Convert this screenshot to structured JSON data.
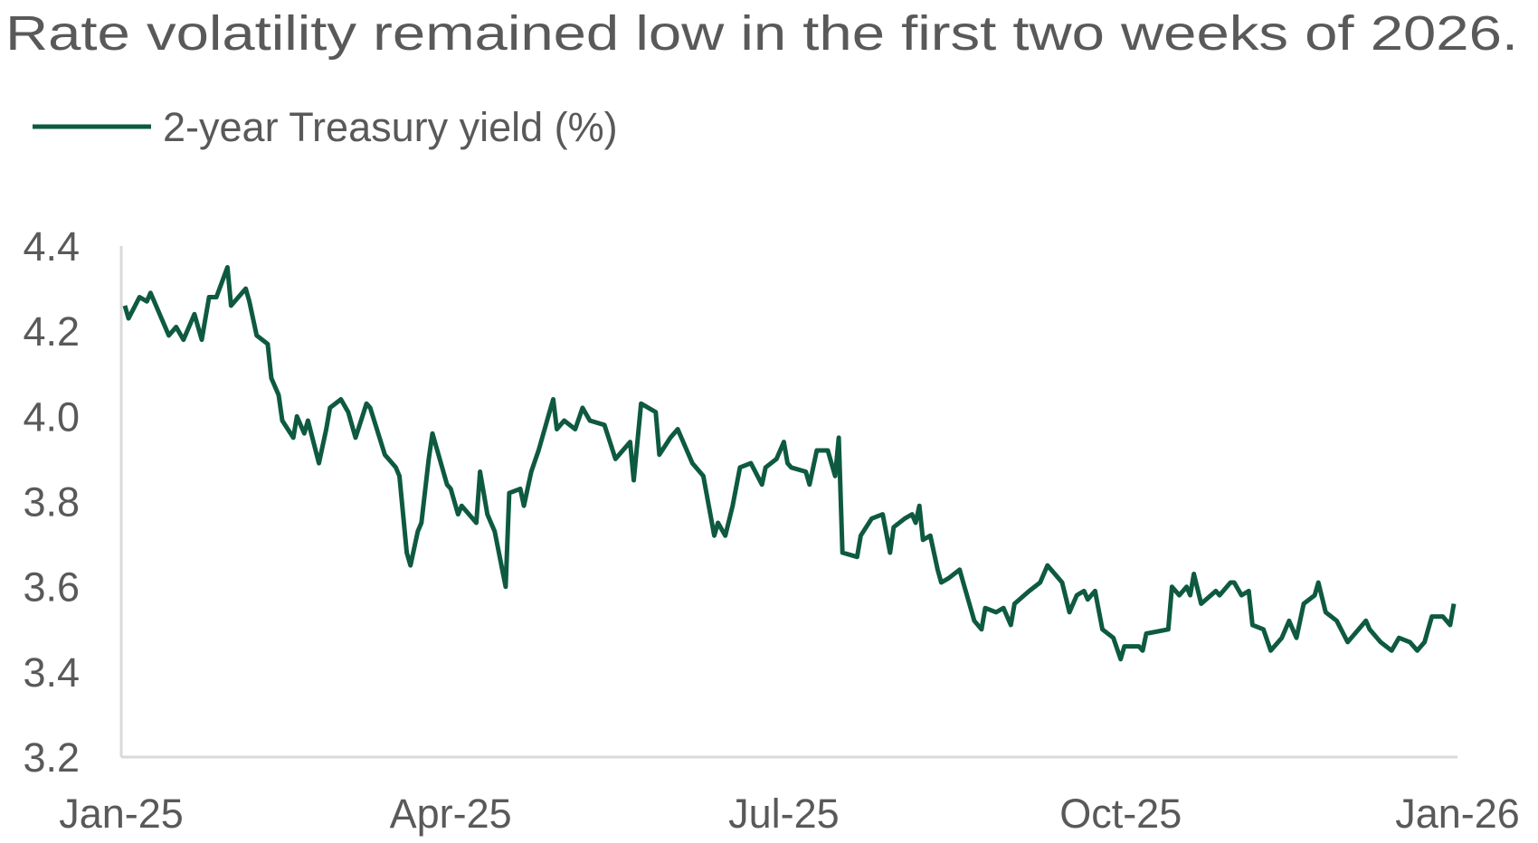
{
  "chart_data": {
    "type": "line",
    "title": "Rate volatility remained low in the first two weeks of 2026.",
    "xlabel": "",
    "ylabel": "",
    "ylim": [
      3.2,
      4.4
    ],
    "xlim": [
      "2025-01-01",
      "2026-01-01"
    ],
    "grid": false,
    "legend_position": "top-left",
    "y_ticks": [
      "4.4",
      "4.2",
      "4.0",
      "3.8",
      "3.6",
      "3.4",
      "3.2"
    ],
    "x_ticks": [
      {
        "date": "2025-01-01",
        "label": "Jan-25"
      },
      {
        "date": "2025-04-01",
        "label": "Apr-25"
      },
      {
        "date": "2025-07-01",
        "label": "Jul-25"
      },
      {
        "date": "2025-10-01",
        "label": "Oct-25"
      },
      {
        "date": "2026-01-01",
        "label": "Jan-26"
      }
    ],
    "series": [
      {
        "name": "2-year Treasury yield (%)",
        "color": "#0e5a41",
        "points": [
          [
            "2025-01-02",
            4.26
          ],
          [
            "2025-01-03",
            4.23
          ],
          [
            "2025-01-06",
            4.28
          ],
          [
            "2025-01-08",
            4.27
          ],
          [
            "2025-01-09",
            4.29
          ],
          [
            "2025-01-14",
            4.19
          ],
          [
            "2025-01-16",
            4.21
          ],
          [
            "2025-01-18",
            4.18
          ],
          [
            "2025-01-21",
            4.24
          ],
          [
            "2025-01-23",
            4.18
          ],
          [
            "2025-01-25",
            4.28
          ],
          [
            "2025-01-27",
            4.28
          ],
          [
            "2025-01-30",
            4.35
          ],
          [
            "2025-01-31",
            4.26
          ],
          [
            "2025-02-04",
            4.3
          ],
          [
            "2025-02-05",
            4.27
          ],
          [
            "2025-02-07",
            4.19
          ],
          [
            "2025-02-10",
            4.17
          ],
          [
            "2025-02-11",
            4.09
          ],
          [
            "2025-02-13",
            4.05
          ],
          [
            "2025-02-14",
            3.99
          ],
          [
            "2025-02-17",
            3.95
          ],
          [
            "2025-02-18",
            4.0
          ],
          [
            "2025-02-20",
            3.96
          ],
          [
            "2025-02-21",
            3.99
          ],
          [
            "2025-02-24",
            3.89
          ],
          [
            "2025-02-26",
            3.97
          ],
          [
            "2025-02-27",
            4.02
          ],
          [
            "2025-03-02",
            4.04
          ],
          [
            "2025-03-04",
            4.01
          ],
          [
            "2025-03-06",
            3.95
          ],
          [
            "2025-03-09",
            4.03
          ],
          [
            "2025-03-10",
            4.02
          ],
          [
            "2025-03-14",
            3.91
          ],
          [
            "2025-03-17",
            3.88
          ],
          [
            "2025-03-18",
            3.86
          ],
          [
            "2025-03-20",
            3.68
          ],
          [
            "2025-03-21",
            3.65
          ],
          [
            "2025-03-23",
            3.73
          ],
          [
            "2025-03-24",
            3.75
          ],
          [
            "2025-03-26",
            3.9
          ],
          [
            "2025-03-27",
            3.96
          ],
          [
            "2025-03-31",
            3.84
          ],
          [
            "2025-04-01",
            3.83
          ],
          [
            "2025-04-03",
            3.77
          ],
          [
            "2025-04-04",
            3.79
          ],
          [
            "2025-04-08",
            3.75
          ],
          [
            "2025-04-09",
            3.87
          ],
          [
            "2025-04-11",
            3.77
          ],
          [
            "2025-04-13",
            3.73
          ],
          [
            "2025-04-16",
            3.6
          ],
          [
            "2025-04-17",
            3.82
          ],
          [
            "2025-04-20",
            3.83
          ],
          [
            "2025-04-21",
            3.79
          ],
          [
            "2025-04-23",
            3.87
          ],
          [
            "2025-04-25",
            3.92
          ],
          [
            "2025-04-28",
            4.01
          ],
          [
            "2025-04-29",
            4.04
          ],
          [
            "2025-04-30",
            3.97
          ],
          [
            "2025-05-02",
            3.99
          ],
          [
            "2025-05-05",
            3.97
          ],
          [
            "2025-05-07",
            4.02
          ],
          [
            "2025-05-09",
            3.99
          ],
          [
            "2025-05-13",
            3.98
          ],
          [
            "2025-05-16",
            3.9
          ],
          [
            "2025-05-20",
            3.94
          ],
          [
            "2025-05-21",
            3.85
          ],
          [
            "2025-05-23",
            4.03
          ],
          [
            "2025-05-27",
            4.01
          ],
          [
            "2025-05-28",
            3.91
          ],
          [
            "2025-05-31",
            3.95
          ],
          [
            "2025-06-02",
            3.97
          ],
          [
            "2025-06-06",
            3.89
          ],
          [
            "2025-06-09",
            3.86
          ],
          [
            "2025-06-12",
            3.72
          ],
          [
            "2025-06-13",
            3.75
          ],
          [
            "2025-06-15",
            3.72
          ],
          [
            "2025-06-17",
            3.79
          ],
          [
            "2025-06-19",
            3.88
          ],
          [
            "2025-06-22",
            3.89
          ],
          [
            "2025-06-25",
            3.84
          ],
          [
            "2025-06-26",
            3.88
          ],
          [
            "2025-06-29",
            3.9
          ],
          [
            "2025-07-01",
            3.94
          ],
          [
            "2025-07-02",
            3.89
          ],
          [
            "2025-07-03",
            3.88
          ],
          [
            "2025-07-07",
            3.87
          ],
          [
            "2025-07-08",
            3.84
          ],
          [
            "2025-07-10",
            3.92
          ],
          [
            "2025-07-13",
            3.92
          ],
          [
            "2025-07-15",
            3.86
          ],
          [
            "2025-07-16",
            3.95
          ],
          [
            "2025-07-17",
            3.68
          ],
          [
            "2025-07-21",
            3.67
          ],
          [
            "2025-07-22",
            3.72
          ],
          [
            "2025-07-25",
            3.76
          ],
          [
            "2025-07-28",
            3.77
          ],
          [
            "2025-07-30",
            3.68
          ],
          [
            "2025-07-31",
            3.74
          ],
          [
            "2025-08-03",
            3.76
          ],
          [
            "2025-08-05",
            3.77
          ],
          [
            "2025-08-06",
            3.75
          ],
          [
            "2025-08-07",
            3.79
          ],
          [
            "2025-08-08",
            3.71
          ],
          [
            "2025-08-10",
            3.72
          ],
          [
            "2025-08-12",
            3.64
          ],
          [
            "2025-08-13",
            3.61
          ],
          [
            "2025-08-15",
            3.62
          ],
          [
            "2025-08-18",
            3.64
          ],
          [
            "2025-08-19",
            3.61
          ],
          [
            "2025-08-22",
            3.52
          ],
          [
            "2025-08-24",
            3.5
          ],
          [
            "2025-08-25",
            3.55
          ],
          [
            "2025-08-28",
            3.54
          ],
          [
            "2025-08-30",
            3.55
          ],
          [
            "2025-09-01",
            3.51
          ],
          [
            "2025-09-02",
            3.56
          ],
          [
            "2025-09-06",
            3.59
          ],
          [
            "2025-09-09",
            3.61
          ],
          [
            "2025-09-11",
            3.65
          ],
          [
            "2025-09-13",
            3.63
          ],
          [
            "2025-09-15",
            3.61
          ],
          [
            "2025-09-17",
            3.54
          ],
          [
            "2025-09-19",
            3.58
          ],
          [
            "2025-09-21",
            3.59
          ],
          [
            "2025-09-22",
            3.57
          ],
          [
            "2025-09-24",
            3.59
          ],
          [
            "2025-09-26",
            3.5
          ],
          [
            "2025-09-29",
            3.48
          ],
          [
            "2025-10-01",
            3.43
          ],
          [
            "2025-10-02",
            3.46
          ],
          [
            "2025-10-06",
            3.46
          ],
          [
            "2025-10-07",
            3.45
          ],
          [
            "2025-10-08",
            3.49
          ],
          [
            "2025-10-14",
            3.5
          ],
          [
            "2025-10-15",
            3.6
          ],
          [
            "2025-10-17",
            3.58
          ],
          [
            "2025-10-19",
            3.6
          ],
          [
            "2025-10-20",
            3.58
          ],
          [
            "2025-10-21",
            3.63
          ],
          [
            "2025-10-23",
            3.56
          ],
          [
            "2025-10-27",
            3.59
          ],
          [
            "2025-10-28",
            3.58
          ],
          [
            "2025-10-31",
            3.61
          ],
          [
            "2025-11-01",
            3.61
          ],
          [
            "2025-11-03",
            3.58
          ],
          [
            "2025-11-05",
            3.59
          ],
          [
            "2025-11-06",
            3.51
          ],
          [
            "2025-11-09",
            3.5
          ],
          [
            "2025-11-11",
            3.45
          ],
          [
            "2025-11-14",
            3.48
          ],
          [
            "2025-11-16",
            3.52
          ],
          [
            "2025-11-18",
            3.48
          ],
          [
            "2025-11-20",
            3.56
          ],
          [
            "2025-11-23",
            3.58
          ],
          [
            "2025-11-24",
            3.61
          ],
          [
            "2025-11-26",
            3.54
          ],
          [
            "2025-11-29",
            3.52
          ],
          [
            "2025-12-02",
            3.47
          ],
          [
            "2025-12-04",
            3.49
          ],
          [
            "2025-12-07",
            3.52
          ],
          [
            "2025-12-08",
            3.5
          ],
          [
            "2025-12-11",
            3.47
          ],
          [
            "2025-12-14",
            3.45
          ],
          [
            "2025-12-16",
            3.48
          ],
          [
            "2025-12-19",
            3.47
          ],
          [
            "2025-12-21",
            3.45
          ],
          [
            "2025-12-23",
            3.47
          ],
          [
            "2025-12-24",
            3.5
          ],
          [
            "2025-12-25",
            3.53
          ],
          [
            "2025-12-28",
            3.53
          ],
          [
            "2025-12-30",
            3.51
          ],
          [
            "2025-12-31",
            3.56
          ]
        ]
      }
    ]
  }
}
